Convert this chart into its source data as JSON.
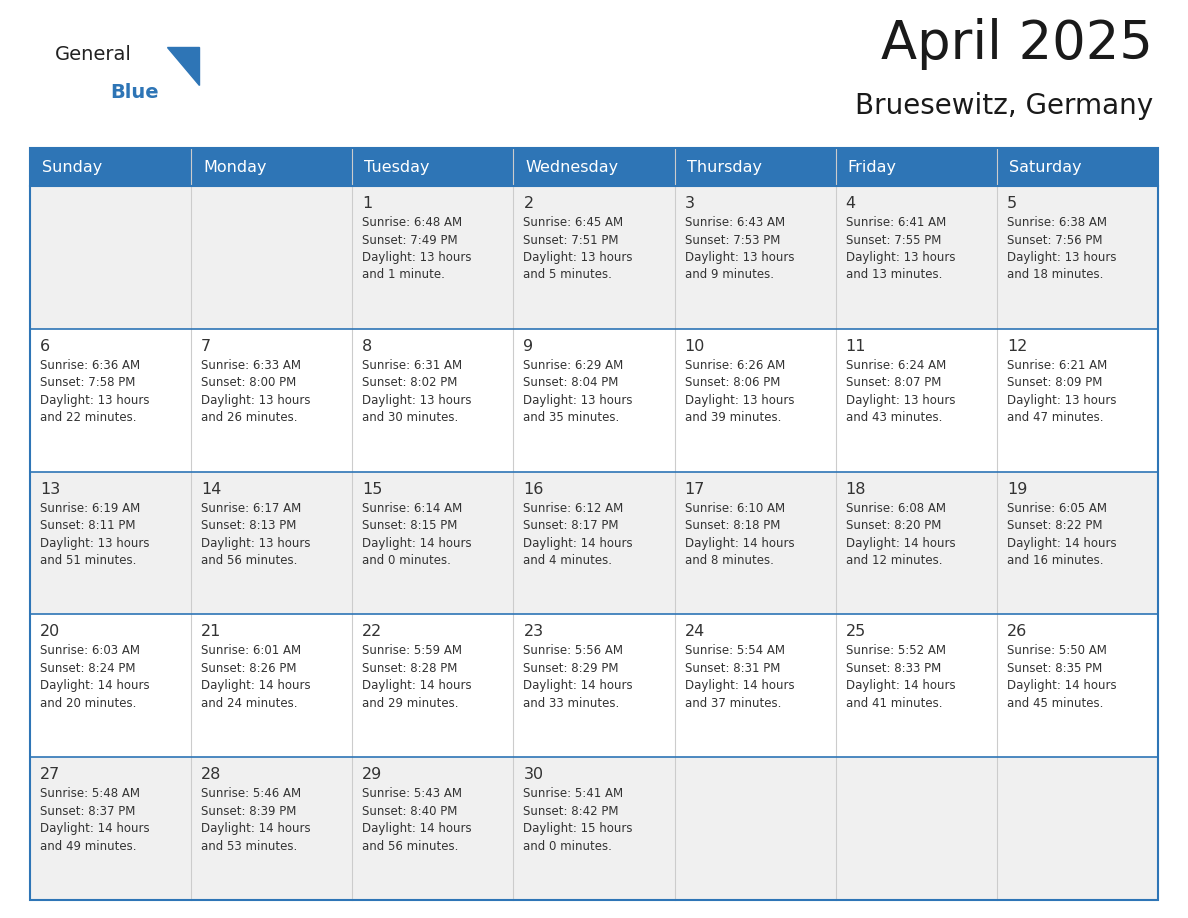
{
  "title": "April 2025",
  "subtitle": "Bruesewitz, Germany",
  "header_bg_color": "#2E75B6",
  "header_text_color": "#FFFFFF",
  "cell_bg_white": "#FFFFFF",
  "cell_bg_gray": "#F0F0F0",
  "border_color": "#2E75B6",
  "text_color": "#333333",
  "title_color": "#1a1a1a",
  "logo_color_general": "#222222",
  "logo_color_blue": "#2E75B6",
  "day_names": [
    "Sunday",
    "Monday",
    "Tuesday",
    "Wednesday",
    "Thursday",
    "Friday",
    "Saturday"
  ],
  "weeks": [
    [
      {
        "day": "",
        "info": ""
      },
      {
        "day": "",
        "info": ""
      },
      {
        "day": "1",
        "info": "Sunrise: 6:48 AM\nSunset: 7:49 PM\nDaylight: 13 hours\nand 1 minute."
      },
      {
        "day": "2",
        "info": "Sunrise: 6:45 AM\nSunset: 7:51 PM\nDaylight: 13 hours\nand 5 minutes."
      },
      {
        "day": "3",
        "info": "Sunrise: 6:43 AM\nSunset: 7:53 PM\nDaylight: 13 hours\nand 9 minutes."
      },
      {
        "day": "4",
        "info": "Sunrise: 6:41 AM\nSunset: 7:55 PM\nDaylight: 13 hours\nand 13 minutes."
      },
      {
        "day": "5",
        "info": "Sunrise: 6:38 AM\nSunset: 7:56 PM\nDaylight: 13 hours\nand 18 minutes."
      }
    ],
    [
      {
        "day": "6",
        "info": "Sunrise: 6:36 AM\nSunset: 7:58 PM\nDaylight: 13 hours\nand 22 minutes."
      },
      {
        "day": "7",
        "info": "Sunrise: 6:33 AM\nSunset: 8:00 PM\nDaylight: 13 hours\nand 26 minutes."
      },
      {
        "day": "8",
        "info": "Sunrise: 6:31 AM\nSunset: 8:02 PM\nDaylight: 13 hours\nand 30 minutes."
      },
      {
        "day": "9",
        "info": "Sunrise: 6:29 AM\nSunset: 8:04 PM\nDaylight: 13 hours\nand 35 minutes."
      },
      {
        "day": "10",
        "info": "Sunrise: 6:26 AM\nSunset: 8:06 PM\nDaylight: 13 hours\nand 39 minutes."
      },
      {
        "day": "11",
        "info": "Sunrise: 6:24 AM\nSunset: 8:07 PM\nDaylight: 13 hours\nand 43 minutes."
      },
      {
        "day": "12",
        "info": "Sunrise: 6:21 AM\nSunset: 8:09 PM\nDaylight: 13 hours\nand 47 minutes."
      }
    ],
    [
      {
        "day": "13",
        "info": "Sunrise: 6:19 AM\nSunset: 8:11 PM\nDaylight: 13 hours\nand 51 minutes."
      },
      {
        "day": "14",
        "info": "Sunrise: 6:17 AM\nSunset: 8:13 PM\nDaylight: 13 hours\nand 56 minutes."
      },
      {
        "day": "15",
        "info": "Sunrise: 6:14 AM\nSunset: 8:15 PM\nDaylight: 14 hours\nand 0 minutes."
      },
      {
        "day": "16",
        "info": "Sunrise: 6:12 AM\nSunset: 8:17 PM\nDaylight: 14 hours\nand 4 minutes."
      },
      {
        "day": "17",
        "info": "Sunrise: 6:10 AM\nSunset: 8:18 PM\nDaylight: 14 hours\nand 8 minutes."
      },
      {
        "day": "18",
        "info": "Sunrise: 6:08 AM\nSunset: 8:20 PM\nDaylight: 14 hours\nand 12 minutes."
      },
      {
        "day": "19",
        "info": "Sunrise: 6:05 AM\nSunset: 8:22 PM\nDaylight: 14 hours\nand 16 minutes."
      }
    ],
    [
      {
        "day": "20",
        "info": "Sunrise: 6:03 AM\nSunset: 8:24 PM\nDaylight: 14 hours\nand 20 minutes."
      },
      {
        "day": "21",
        "info": "Sunrise: 6:01 AM\nSunset: 8:26 PM\nDaylight: 14 hours\nand 24 minutes."
      },
      {
        "day": "22",
        "info": "Sunrise: 5:59 AM\nSunset: 8:28 PM\nDaylight: 14 hours\nand 29 minutes."
      },
      {
        "day": "23",
        "info": "Sunrise: 5:56 AM\nSunset: 8:29 PM\nDaylight: 14 hours\nand 33 minutes."
      },
      {
        "day": "24",
        "info": "Sunrise: 5:54 AM\nSunset: 8:31 PM\nDaylight: 14 hours\nand 37 minutes."
      },
      {
        "day": "25",
        "info": "Sunrise: 5:52 AM\nSunset: 8:33 PM\nDaylight: 14 hours\nand 41 minutes."
      },
      {
        "day": "26",
        "info": "Sunrise: 5:50 AM\nSunset: 8:35 PM\nDaylight: 14 hours\nand 45 minutes."
      }
    ],
    [
      {
        "day": "27",
        "info": "Sunrise: 5:48 AM\nSunset: 8:37 PM\nDaylight: 14 hours\nand 49 minutes."
      },
      {
        "day": "28",
        "info": "Sunrise: 5:46 AM\nSunset: 8:39 PM\nDaylight: 14 hours\nand 53 minutes."
      },
      {
        "day": "29",
        "info": "Sunrise: 5:43 AM\nSunset: 8:40 PM\nDaylight: 14 hours\nand 56 minutes."
      },
      {
        "day": "30",
        "info": "Sunrise: 5:41 AM\nSunset: 8:42 PM\nDaylight: 15 hours\nand 0 minutes."
      },
      {
        "day": "",
        "info": ""
      },
      {
        "day": "",
        "info": ""
      },
      {
        "day": "",
        "info": ""
      }
    ]
  ]
}
